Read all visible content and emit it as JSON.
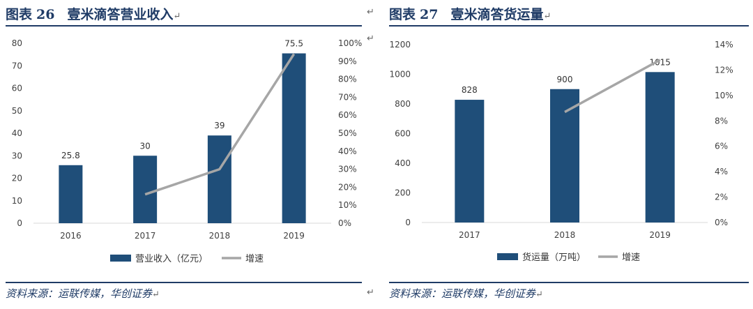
{
  "figures": [
    {
      "title_prefix": "图表",
      "title_num": "26",
      "title": "壹米滴答营业收入",
      "source": "资料来源：运联传媒，华创证券"
    },
    {
      "title_prefix": "图表",
      "title_num": "27",
      "title": "壹米滴答货运量",
      "source": "资料来源：运联传媒，华创证券"
    }
  ],
  "return_mark": "↵",
  "colors": {
    "bar": "#1f4e79",
    "line": "#a6a6a6",
    "accent": "#1f3b66"
  },
  "chart_data": [
    {
      "type": "bar",
      "categories": [
        "2016",
        "2017",
        "2018",
        "2019"
      ],
      "series": [
        {
          "name": "营业收入（亿元）",
          "type": "bar",
          "axis": "left",
          "values": [
            25.8,
            30,
            39,
            75.5
          ]
        },
        {
          "name": "增速",
          "type": "line",
          "axis": "right",
          "values": [
            null,
            0.16,
            0.3,
            0.94
          ]
        }
      ],
      "data_labels": [
        "25.8",
        "30",
        "39",
        "75.5"
      ],
      "ylim": [
        0,
        80
      ],
      "yticks": [
        0,
        10,
        20,
        30,
        40,
        50,
        60,
        70,
        80
      ],
      "y2lim": [
        0,
        1.0
      ],
      "y2ticks": [
        "0%",
        "10%",
        "20%",
        "30%",
        "40%",
        "50%",
        "60%",
        "70%",
        "80%",
        "90%",
        "100%"
      ],
      "legend": "bottom",
      "grid": false
    },
    {
      "type": "bar",
      "categories": [
        "2017",
        "2018",
        "2019"
      ],
      "series": [
        {
          "name": "货运量（万吨）",
          "type": "bar",
          "axis": "left",
          "values": [
            828,
            900,
            1015
          ]
        },
        {
          "name": "增速",
          "type": "line",
          "axis": "right",
          "values": [
            null,
            0.087,
            0.128
          ]
        }
      ],
      "data_labels": [
        "828",
        "900",
        "1015"
      ],
      "ylim": [
        0,
        1200
      ],
      "yticks": [
        0,
        200,
        400,
        600,
        800,
        1000,
        1200
      ],
      "y2lim": [
        0,
        0.14
      ],
      "y2ticks": [
        "0%",
        "2%",
        "4%",
        "6%",
        "8%",
        "10%",
        "12%",
        "14%"
      ],
      "legend": "bottom",
      "grid": false
    }
  ]
}
